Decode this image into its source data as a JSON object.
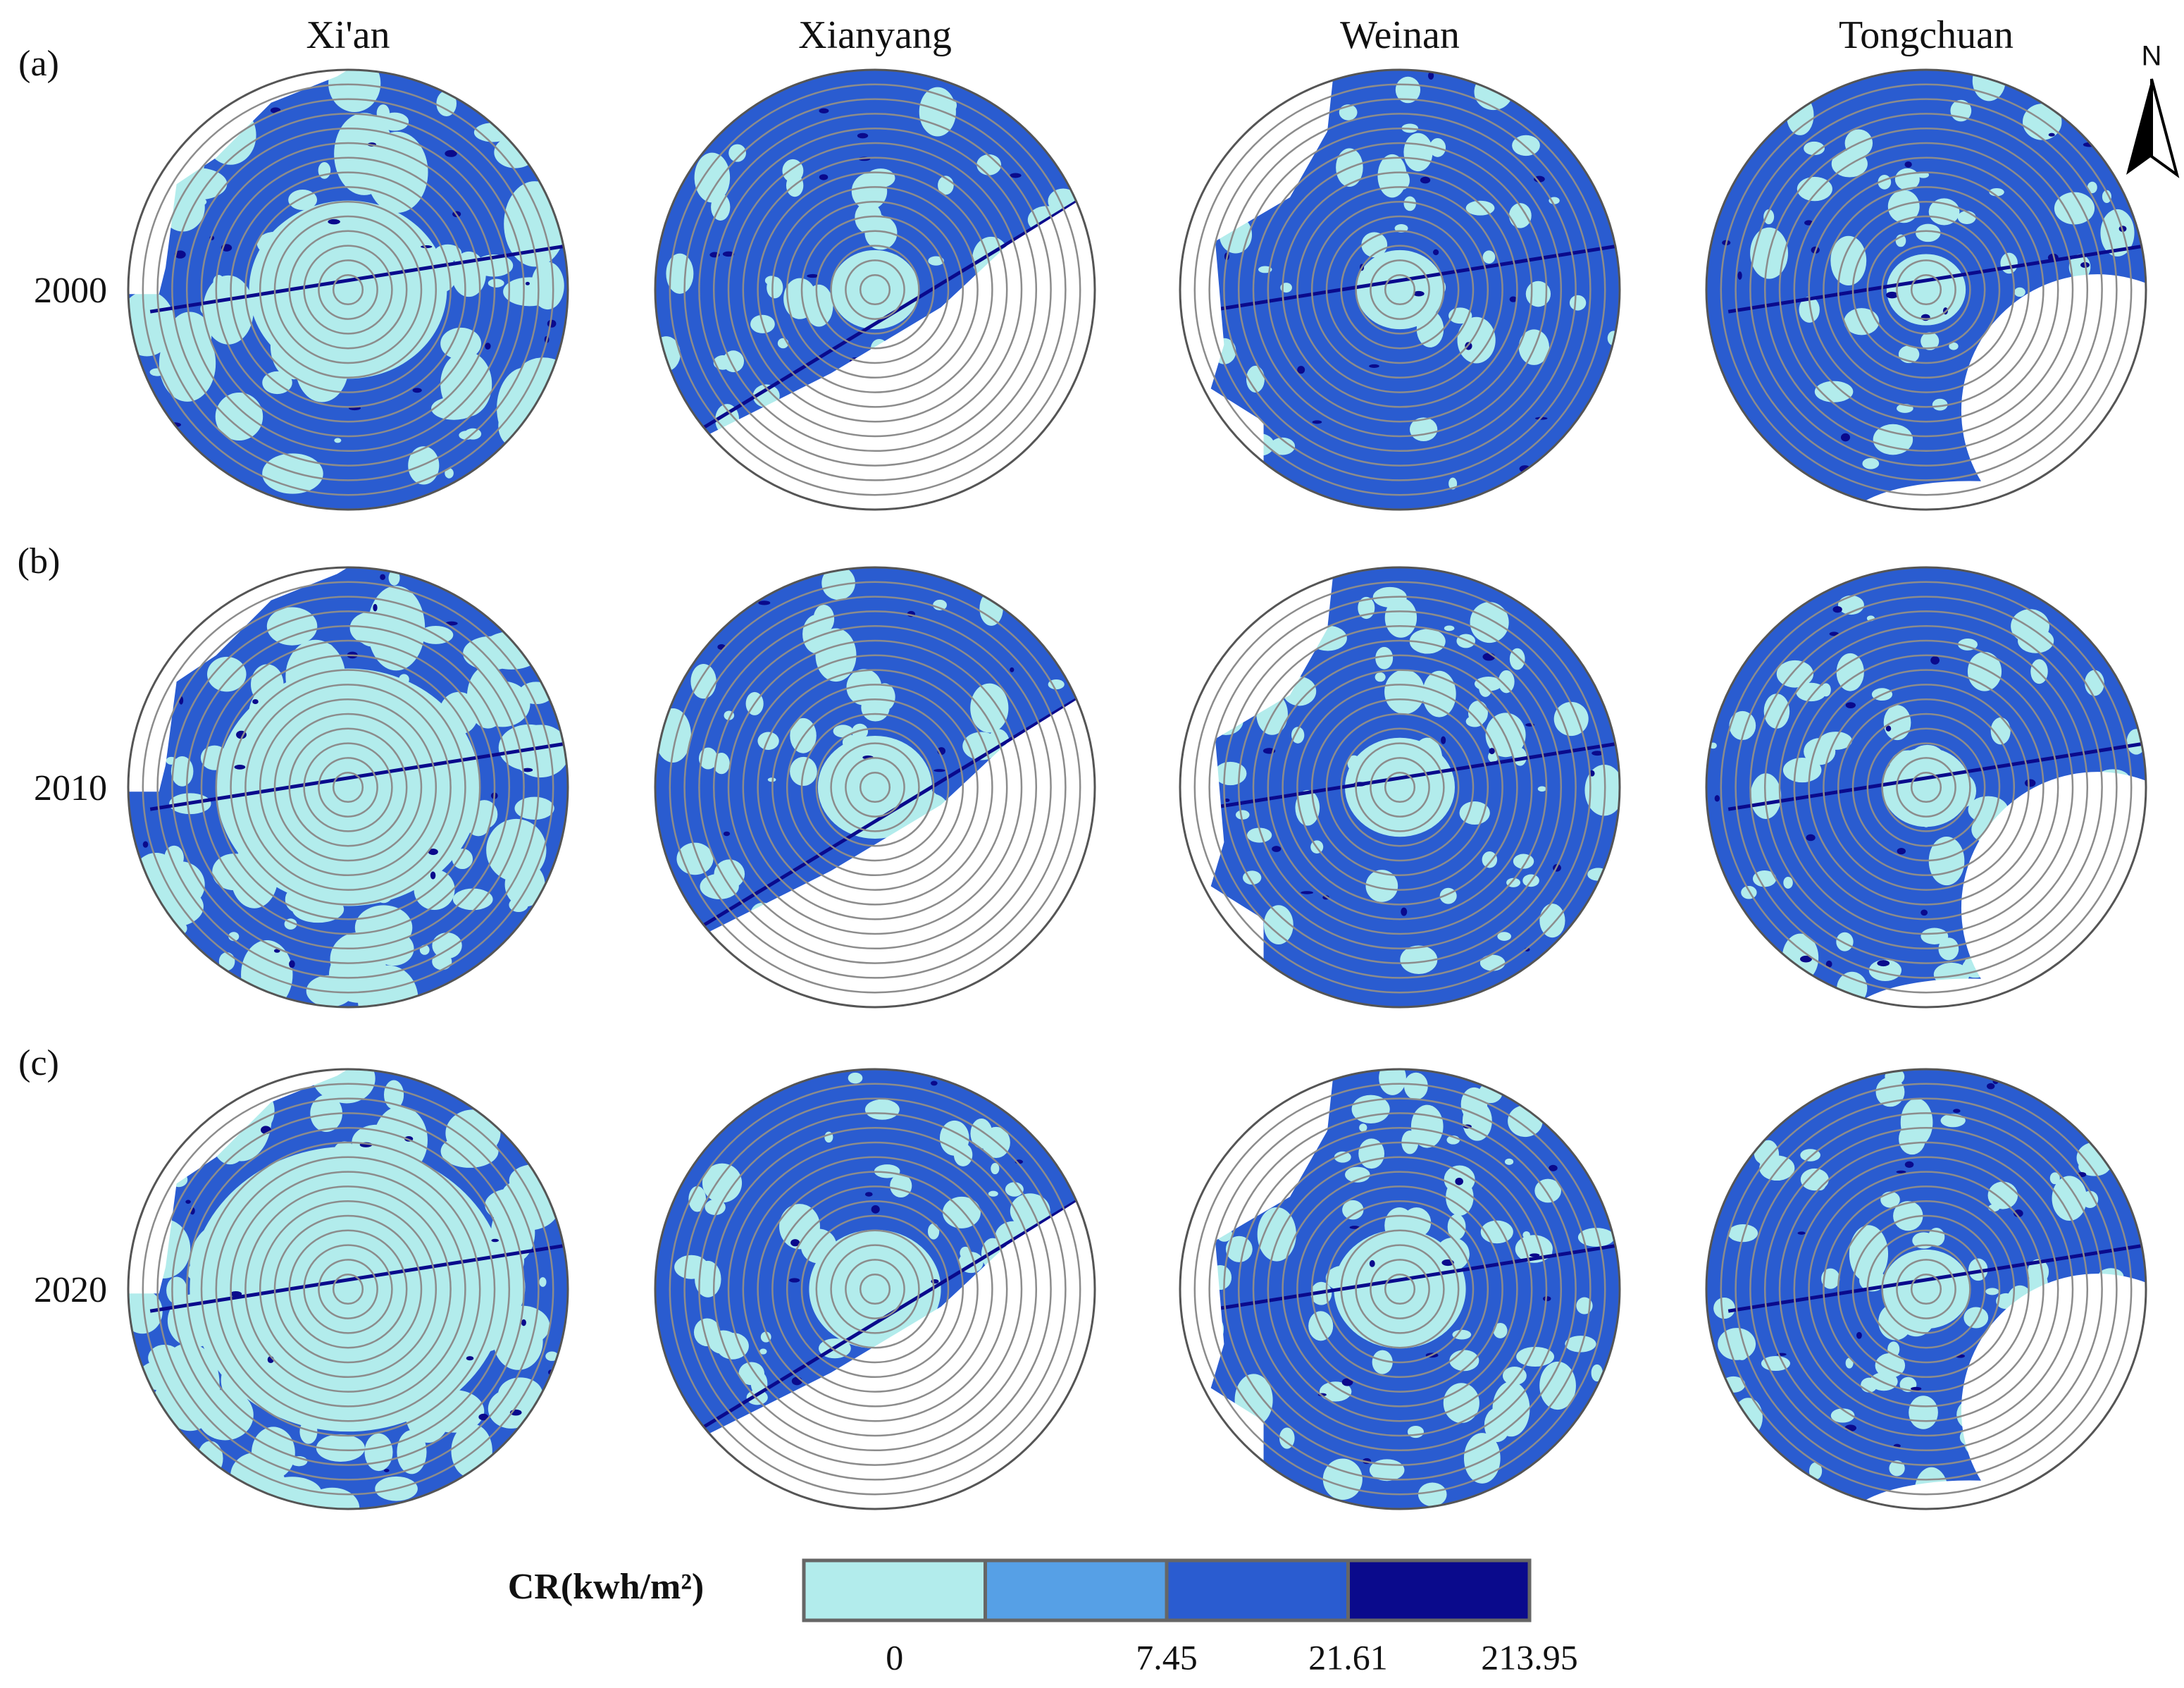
{
  "columns": [
    "Xi'an",
    "Xianyang",
    "Weinan",
    "Tongchuan"
  ],
  "rows": [
    {
      "label": "(a)",
      "year": "2000"
    },
    {
      "label": "(b)",
      "year": "2010"
    },
    {
      "label": "(c)",
      "year": "2020"
    }
  ],
  "north": "N",
  "legend": {
    "title": "CR(kwh/m²)",
    "colors": [
      "#b2ecec",
      "#56a0e6",
      "#2a5cd0",
      "#0a0a8c"
    ],
    "labels": [
      "0",
      "7.45",
      "21.61",
      "213.95"
    ]
  }
}
